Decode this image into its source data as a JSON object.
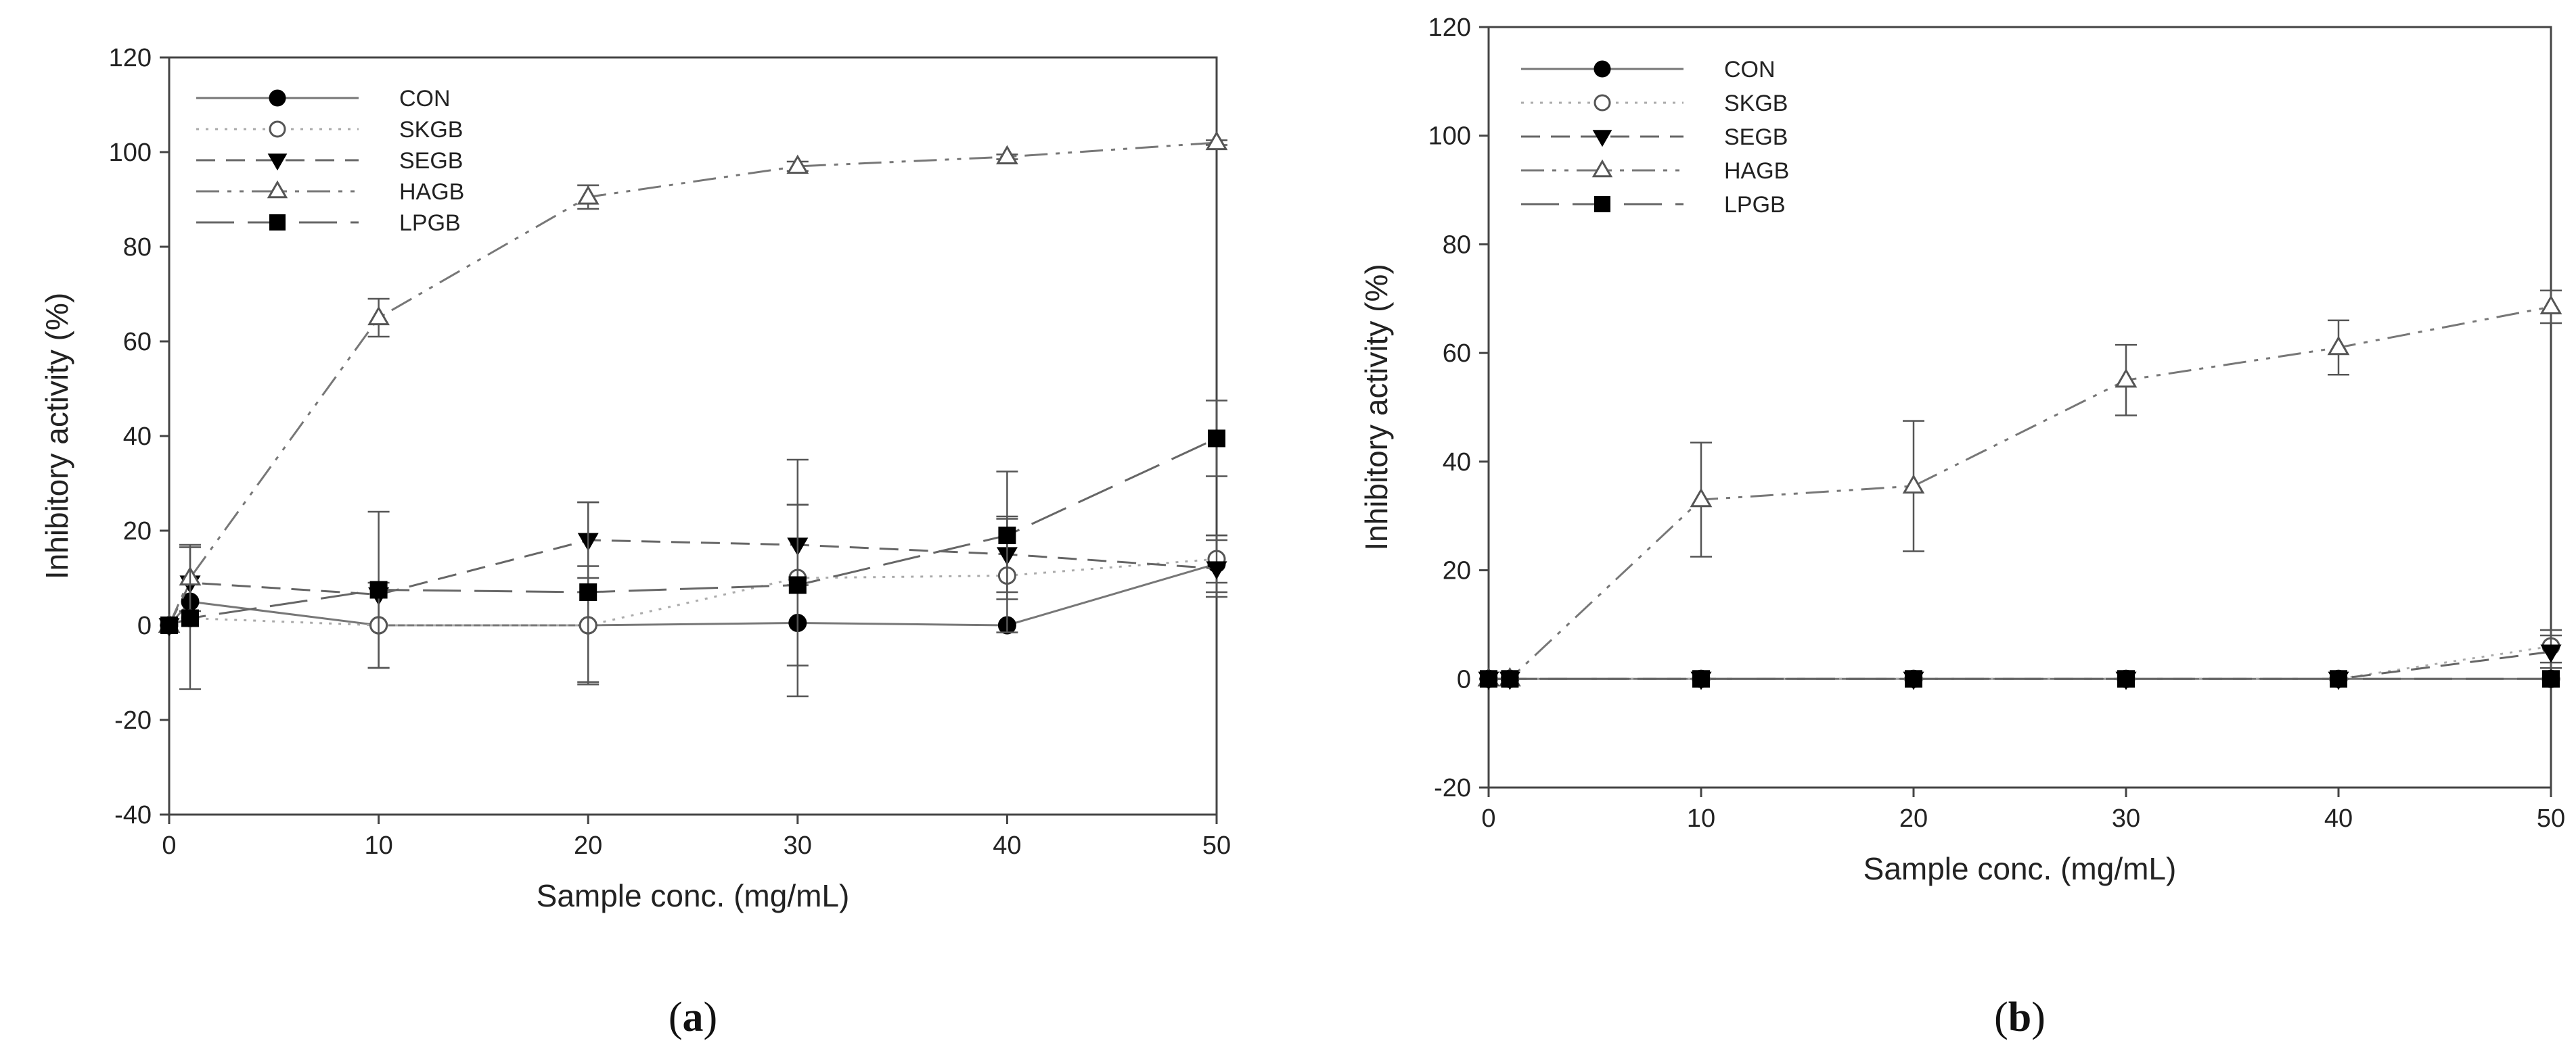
{
  "chart_data": [
    {
      "type": "line",
      "panel_label": "a",
      "xlabel": "Sample conc. (mg/mL)",
      "ylabel": "Inhibitory activity (%)",
      "xlim": [
        0,
        50
      ],
      "ylim": [
        -40,
        120
      ],
      "xticks": [
        0,
        10,
        20,
        30,
        40,
        50
      ],
      "yticks": [
        -40,
        -20,
        0,
        20,
        40,
        60,
        80,
        100,
        120
      ],
      "x": [
        0,
        1,
        10,
        20,
        30,
        40,
        50
      ],
      "legend_position": "top-left",
      "series": [
        {
          "name": "CON",
          "marker": "filled-circle",
          "dash": "solid",
          "values": [
            0,
            5,
            0,
            0,
            0.5,
            0,
            13
          ],
          "errors": [
            0,
            0,
            0,
            0,
            0,
            0,
            6
          ]
        },
        {
          "name": "SKGB",
          "marker": "open-circle",
          "dash": "dotted",
          "values": [
            0,
            1.5,
            0,
            0,
            10,
            10.5,
            14
          ],
          "errors": [
            0,
            0,
            9,
            12.5,
            25,
            12,
            5
          ]
        },
        {
          "name": "SEGB",
          "marker": "filled-triangle-down",
          "dash": "dashed",
          "values": [
            0,
            9,
            6.5,
            18,
            17,
            15,
            12
          ],
          "errors": [
            0,
            0,
            0,
            8,
            8.5,
            8,
            6
          ]
        },
        {
          "name": "HAGB",
          "marker": "open-triangle-up",
          "dash": "dash-dot-dot",
          "values": [
            0,
            10,
            65,
            90.5,
            97,
            99,
            102
          ],
          "errors": [
            0,
            7,
            4,
            2.5,
            1,
            0.5,
            0.5
          ]
        },
        {
          "name": "LPGB",
          "marker": "filled-square",
          "dash": "long-dash",
          "values": [
            0,
            1.5,
            7.5,
            7,
            8.5,
            19,
            39.5
          ],
          "errors": [
            0,
            15,
            16.5,
            19,
            17,
            13.5,
            8
          ]
        }
      ]
    },
    {
      "type": "line",
      "panel_label": "b",
      "xlabel": "Sample conc. (mg/mL)",
      "ylabel": "Inhibitory activity (%)",
      "xlim": [
        0,
        50
      ],
      "ylim": [
        -20,
        120
      ],
      "xticks": [
        0,
        10,
        20,
        30,
        40,
        50
      ],
      "yticks": [
        -20,
        0,
        20,
        40,
        60,
        80,
        100,
        120
      ],
      "x": [
        0,
        1,
        10,
        20,
        30,
        40,
        50
      ],
      "legend_position": "top-left",
      "series": [
        {
          "name": "CON",
          "marker": "filled-circle",
          "dash": "solid",
          "values": [
            0,
            0,
            0,
            0,
            0,
            0,
            0
          ],
          "errors": [
            0,
            0,
            0,
            0,
            0,
            0,
            0
          ]
        },
        {
          "name": "SKGB",
          "marker": "open-circle",
          "dash": "dotted",
          "values": [
            0,
            0,
            0,
            0,
            0,
            0,
            6
          ],
          "errors": [
            0,
            0,
            0,
            0,
            0,
            0,
            3
          ]
        },
        {
          "name": "SEGB",
          "marker": "filled-triangle-down",
          "dash": "dashed",
          "values": [
            0,
            0,
            0,
            0,
            0,
            0,
            5
          ],
          "errors": [
            0,
            0,
            0,
            0,
            0,
            0,
            3
          ]
        },
        {
          "name": "HAGB",
          "marker": "open-triangle-up",
          "dash": "dash-dot-dot",
          "values": [
            0,
            0,
            33,
            35.5,
            55,
            61,
            68.5
          ],
          "errors": [
            0,
            0,
            10.5,
            12,
            6.5,
            5,
            3
          ]
        },
        {
          "name": "LPGB",
          "marker": "filled-square",
          "dash": "long-dash",
          "values": [
            0,
            0,
            0,
            0,
            0,
            0,
            0
          ],
          "errors": [
            0,
            0,
            0,
            0,
            0,
            0,
            0
          ]
        }
      ]
    }
  ]
}
